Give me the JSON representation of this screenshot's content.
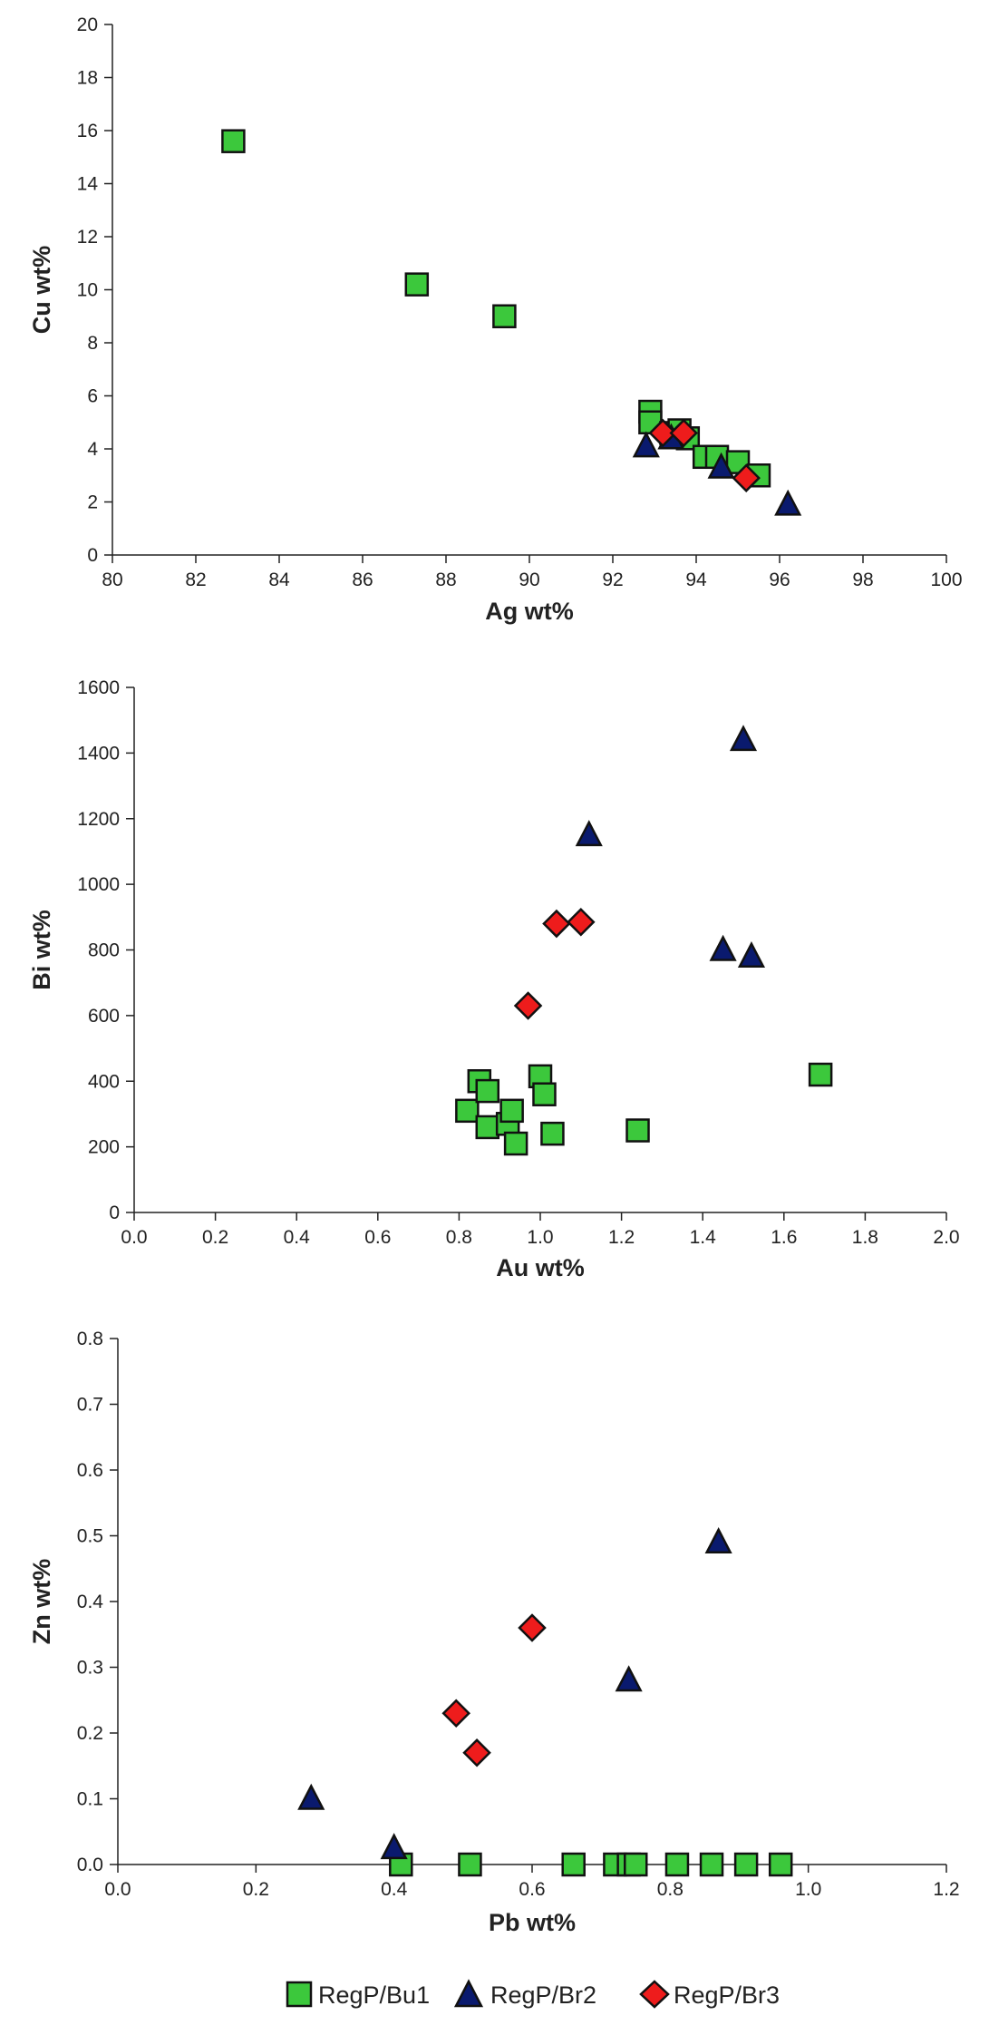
{
  "chart_data": [
    {
      "type": "scatter",
      "title": "",
      "xlabel": "Ag wt%",
      "ylabel": "Cu wt%",
      "xlim": [
        80,
        100
      ],
      "ylim": [
        0,
        20
      ],
      "xticks": [
        80,
        82,
        84,
        86,
        88,
        90,
        92,
        94,
        96,
        98,
        100
      ],
      "yticks": [
        0,
        2,
        4,
        6,
        8,
        10,
        12,
        14,
        16,
        18,
        20
      ],
      "grid": false,
      "series": [
        {
          "name": "RegP/Bu1",
          "x": [
            82.9,
            87.3,
            89.4,
            92.9,
            92.9,
            93.4,
            93.6,
            93.8,
            94.2,
            94.5,
            95.0,
            95.5
          ],
          "y": [
            15.6,
            10.2,
            9.0,
            5.4,
            5.0,
            4.6,
            4.7,
            4.4,
            3.7,
            3.7,
            3.5,
            3.0
          ]
        },
        {
          "name": "RegP/Br2",
          "x": [
            92.8,
            93.4,
            94.6,
            96.2
          ],
          "y": [
            4.1,
            4.4,
            3.3,
            1.9
          ]
        },
        {
          "name": "RegP/Br3",
          "x": [
            93.2,
            93.7,
            95.2
          ],
          "y": [
            4.6,
            4.6,
            2.9
          ]
        }
      ]
    },
    {
      "type": "scatter",
      "title": "",
      "xlabel": "Au wt%",
      "ylabel": "Bi wt%",
      "xlim": [
        0,
        2
      ],
      "ylim": [
        0,
        1600
      ],
      "xticks": [
        0,
        0.2,
        0.4,
        0.6,
        0.8,
        1,
        1.2,
        1.4,
        1.6,
        1.8,
        2
      ],
      "xtick_labels": [
        "0.0",
        "0.2",
        "0.4",
        "0.6",
        "0.8",
        "1.0",
        "1.2",
        "1.4",
        "1.6",
        "1.8",
        "2.0"
      ],
      "yticks": [
        0,
        200,
        400,
        600,
        800,
        1000,
        1200,
        1400,
        1600
      ],
      "grid": false,
      "series": [
        {
          "name": "RegP/Bu1",
          "x": [
            0.82,
            0.85,
            0.87,
            0.87,
            0.92,
            0.93,
            0.94,
            1.0,
            1.01,
            1.03,
            1.24,
            1.69
          ],
          "y": [
            310,
            400,
            370,
            260,
            270,
            310,
            210,
            415,
            360,
            240,
            250,
            420
          ]
        },
        {
          "name": "RegP/Br2",
          "x": [
            1.12,
            1.45,
            1.5,
            1.52
          ],
          "y": [
            1150,
            800,
            1440,
            780
          ]
        },
        {
          "name": "RegP/Br3",
          "x": [
            0.97,
            1.04,
            1.1
          ],
          "y": [
            630,
            880,
            885
          ]
        }
      ]
    },
    {
      "type": "scatter",
      "title": "",
      "xlabel": "Pb wt%",
      "ylabel": "Zn wt%",
      "xlim": [
        0,
        1.2
      ],
      "ylim": [
        0,
        0.8
      ],
      "xticks": [
        0,
        0.2,
        0.4,
        0.6,
        0.8,
        1,
        1.2
      ],
      "xtick_labels": [
        "0.0",
        "0.2",
        "0.4",
        "0.6",
        "0.8",
        "1.0",
        "1.2"
      ],
      "yticks": [
        0,
        0.1,
        0.2,
        0.3,
        0.4,
        0.5,
        0.6,
        0.7,
        0.8
      ],
      "ytick_labels": [
        "0.0",
        "0.1",
        "0.2",
        "0.3",
        "0.4",
        "0.5",
        "0.6",
        "0.7",
        "0.8"
      ],
      "grid": false,
      "series": [
        {
          "name": "RegP/Bu1",
          "x": [
            0.41,
            0.51,
            0.66,
            0.72,
            0.74,
            0.75,
            0.81,
            0.86,
            0.91,
            0.96
          ],
          "y": [
            0,
            0,
            0,
            0,
            0,
            0,
            0,
            0,
            0,
            0
          ]
        },
        {
          "name": "RegP/Br2",
          "x": [
            0.28,
            0.4,
            0.74,
            0.87
          ],
          "y": [
            0.1,
            0.025,
            0.28,
            0.49
          ]
        },
        {
          "name": "RegP/Br3",
          "x": [
            0.49,
            0.52,
            0.6
          ],
          "y": [
            0.23,
            0.17,
            0.36
          ]
        }
      ]
    }
  ],
  "legend": {
    "placement": "bottom-center",
    "items": [
      {
        "label": "RegP/Bu1",
        "marker": "square",
        "color": "#3cc83c"
      },
      {
        "label": "RegP/Br2",
        "marker": "triangle",
        "color": "#0a1a6e"
      },
      {
        "label": "RegP/Br3",
        "marker": "diamond",
        "color": "#ee1c1c"
      }
    ]
  }
}
